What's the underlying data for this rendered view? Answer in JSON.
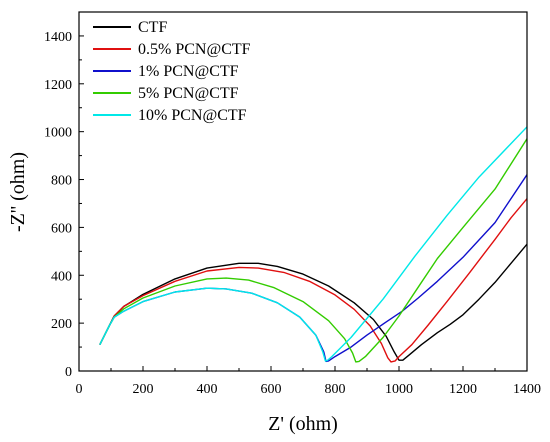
{
  "chart_data": {
    "type": "line",
    "title": "",
    "xlabel": "Z' (ohm)",
    "ylabel": "-Z'' (ohm)",
    "xlim": [
      0,
      1400
    ],
    "ylim": [
      0,
      1500
    ],
    "xticks": [
      0,
      200,
      400,
      600,
      800,
      1000,
      1200,
      1400
    ],
    "yticks": [
      0,
      200,
      400,
      600,
      800,
      1000,
      1200,
      1400
    ],
    "grid": false,
    "legend_position": "top-left",
    "series": [
      {
        "name": "CTF",
        "color": "#000000",
        "points": [
          [
            65,
            110
          ],
          [
            80,
            150
          ],
          [
            95,
            190
          ],
          [
            110,
            230
          ],
          [
            140,
            270
          ],
          [
            200,
            320
          ],
          [
            300,
            385
          ],
          [
            400,
            430
          ],
          [
            500,
            450
          ],
          [
            560,
            450
          ],
          [
            620,
            437
          ],
          [
            700,
            405
          ],
          [
            780,
            355
          ],
          [
            860,
            285
          ],
          [
            920,
            215
          ],
          [
            960,
            145
          ],
          [
            985,
            80
          ],
          [
            1000,
            45
          ],
          [
            1012,
            45
          ],
          [
            1030,
            65
          ],
          [
            1070,
            110
          ],
          [
            1120,
            160
          ],
          [
            1160,
            195
          ],
          [
            1200,
            235
          ],
          [
            1250,
            300
          ],
          [
            1300,
            370
          ],
          [
            1350,
            450
          ],
          [
            1400,
            530
          ]
        ]
      },
      {
        "name": "0.5% PCN@CTF",
        "color": "#e01010",
        "points": [
          [
            65,
            110
          ],
          [
            80,
            150
          ],
          [
            95,
            190
          ],
          [
            110,
            230
          ],
          [
            140,
            270
          ],
          [
            200,
            315
          ],
          [
            300,
            375
          ],
          [
            400,
            418
          ],
          [
            500,
            433
          ],
          [
            560,
            430
          ],
          [
            640,
            412
          ],
          [
            720,
            375
          ],
          [
            800,
            318
          ],
          [
            860,
            258
          ],
          [
            910,
            188
          ],
          [
            945,
            115
          ],
          [
            965,
            55
          ],
          [
            975,
            38
          ],
          [
            988,
            42
          ],
          [
            1000,
            60
          ],
          [
            1040,
            110
          ],
          [
            1090,
            190
          ],
          [
            1150,
            290
          ],
          [
            1220,
            410
          ],
          [
            1300,
            550
          ],
          [
            1350,
            640
          ],
          [
            1400,
            720
          ]
        ]
      },
      {
        "name": "1% PCN@CTF",
        "color": "#1010cc",
        "points": [
          [
            65,
            110
          ],
          [
            80,
            150
          ],
          [
            95,
            190
          ],
          [
            110,
            225
          ],
          [
            140,
            250
          ],
          [
            200,
            290
          ],
          [
            300,
            330
          ],
          [
            400,
            346
          ],
          [
            460,
            343
          ],
          [
            540,
            325
          ],
          [
            620,
            285
          ],
          [
            690,
            225
          ],
          [
            740,
            150
          ],
          [
            765,
            80
          ],
          [
            772,
            40
          ],
          [
            780,
            42
          ],
          [
            800,
            60
          ],
          [
            850,
            100
          ],
          [
            900,
            150
          ],
          [
            960,
            205
          ],
          [
            1010,
            250
          ],
          [
            1060,
            305
          ],
          [
            1120,
            375
          ],
          [
            1200,
            475
          ],
          [
            1300,
            620
          ],
          [
            1400,
            820
          ]
        ]
      },
      {
        "name": "5% PCN@CTF",
        "color": "#33cc00",
        "points": [
          [
            65,
            110
          ],
          [
            80,
            150
          ],
          [
            95,
            190
          ],
          [
            110,
            225
          ],
          [
            140,
            260
          ],
          [
            200,
            305
          ],
          [
            300,
            355
          ],
          [
            400,
            385
          ],
          [
            460,
            388
          ],
          [
            530,
            380
          ],
          [
            610,
            348
          ],
          [
            700,
            290
          ],
          [
            780,
            210
          ],
          [
            830,
            135
          ],
          [
            855,
            75
          ],
          [
            865,
            38
          ],
          [
            875,
            40
          ],
          [
            895,
            60
          ],
          [
            950,
            140
          ],
          [
            1000,
            230
          ],
          [
            1060,
            350
          ],
          [
            1120,
            470
          ],
          [
            1200,
            600
          ],
          [
            1300,
            760
          ],
          [
            1400,
            970
          ]
        ]
      },
      {
        "name": "10% PCN@CTF",
        "color": "#00e8e8",
        "points": [
          [
            65,
            110
          ],
          [
            80,
            150
          ],
          [
            95,
            190
          ],
          [
            110,
            225
          ],
          [
            140,
            250
          ],
          [
            200,
            290
          ],
          [
            300,
            330
          ],
          [
            400,
            346
          ],
          [
            460,
            343
          ],
          [
            540,
            325
          ],
          [
            620,
            285
          ],
          [
            690,
            225
          ],
          [
            740,
            150
          ],
          [
            762,
            80
          ],
          [
            770,
            42
          ],
          [
            776,
            44
          ],
          [
            790,
            60
          ],
          [
            850,
            140
          ],
          [
            950,
            300
          ],
          [
            1050,
            480
          ],
          [
            1150,
            650
          ],
          [
            1250,
            810
          ],
          [
            1350,
            950
          ],
          [
            1400,
            1020
          ]
        ]
      }
    ]
  }
}
